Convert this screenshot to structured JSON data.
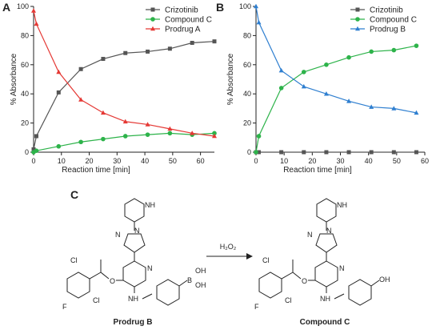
{
  "panels": {
    "a": "A",
    "b": "B",
    "c": "C"
  },
  "chart_data": [
    {
      "type": "line",
      "panel": "A",
      "xlabel": "Reaction time [min]",
      "ylabel": "% Absorbance",
      "xlim": [
        0,
        65
      ],
      "ylim": [
        0,
        100
      ],
      "xticks": [
        0,
        10,
        20,
        30,
        40,
        50,
        60
      ],
      "yticks": [
        0,
        20,
        40,
        60,
        80,
        100
      ],
      "grid": false,
      "legend_position": "top-right",
      "series": [
        {
          "name": "Crizotinib",
          "color": "#555555",
          "marker": "square",
          "x": [
            0,
            1,
            9,
            17,
            25,
            33,
            41,
            49,
            57,
            65
          ],
          "y": [
            2,
            11,
            41,
            57,
            64,
            68,
            69,
            71,
            75,
            76
          ]
        },
        {
          "name": "Compound C",
          "color": "#2db34a",
          "marker": "circle",
          "x": [
            0,
            1,
            9,
            17,
            25,
            33,
            41,
            49,
            57,
            65
          ],
          "y": [
            0,
            1,
            4,
            7,
            9,
            11,
            12,
            13,
            12,
            13
          ]
        },
        {
          "name": "Prodrug A",
          "color": "#e53935",
          "marker": "triangle",
          "x": [
            0,
            1,
            9,
            17,
            25,
            33,
            41,
            49,
            57,
            65
          ],
          "y": [
            97,
            88,
            55,
            36,
            27,
            21,
            19,
            16,
            13,
            11
          ]
        }
      ]
    },
    {
      "type": "line",
      "panel": "B",
      "xlabel": "Reaction time [min]",
      "ylabel": "% Absorbance",
      "xlim": [
        0,
        60
      ],
      "ylim": [
        0,
        100
      ],
      "xticks": [
        0,
        10,
        20,
        30,
        40,
        50,
        60
      ],
      "yticks": [
        0,
        20,
        40,
        60,
        80,
        100
      ],
      "grid": false,
      "legend_position": "top-right",
      "series": [
        {
          "name": "Crizotinib",
          "color": "#555555",
          "marker": "square",
          "x": [
            0,
            1,
            9,
            17,
            25,
            33,
            41,
            49,
            57
          ],
          "y": [
            0,
            0,
            0,
            0,
            0,
            0,
            0,
            0,
            0
          ]
        },
        {
          "name": "Compound C",
          "color": "#2db34a",
          "marker": "circle",
          "x": [
            0,
            1,
            9,
            17,
            25,
            33,
            41,
            49,
            57
          ],
          "y": [
            0,
            11,
            44,
            55,
            60,
            65,
            69,
            70,
            73
          ]
        },
        {
          "name": "Prodrug B",
          "color": "#2f7fd0",
          "marker": "triangle",
          "x": [
            0,
            1,
            9,
            17,
            25,
            33,
            41,
            49,
            57
          ],
          "y": [
            100,
            89,
            56,
            45,
            40,
            35,
            31,
            30,
            27
          ]
        }
      ]
    }
  ],
  "scheme": {
    "left_caption": "Prodrug B",
    "right_caption": "Compound C",
    "reagent": "H₂O₂",
    "atoms": {
      "nh": "NH",
      "n": "N",
      "o": "O",
      "cl": "Cl",
      "f": "F",
      "b": "B",
      "oh": "OH"
    }
  }
}
